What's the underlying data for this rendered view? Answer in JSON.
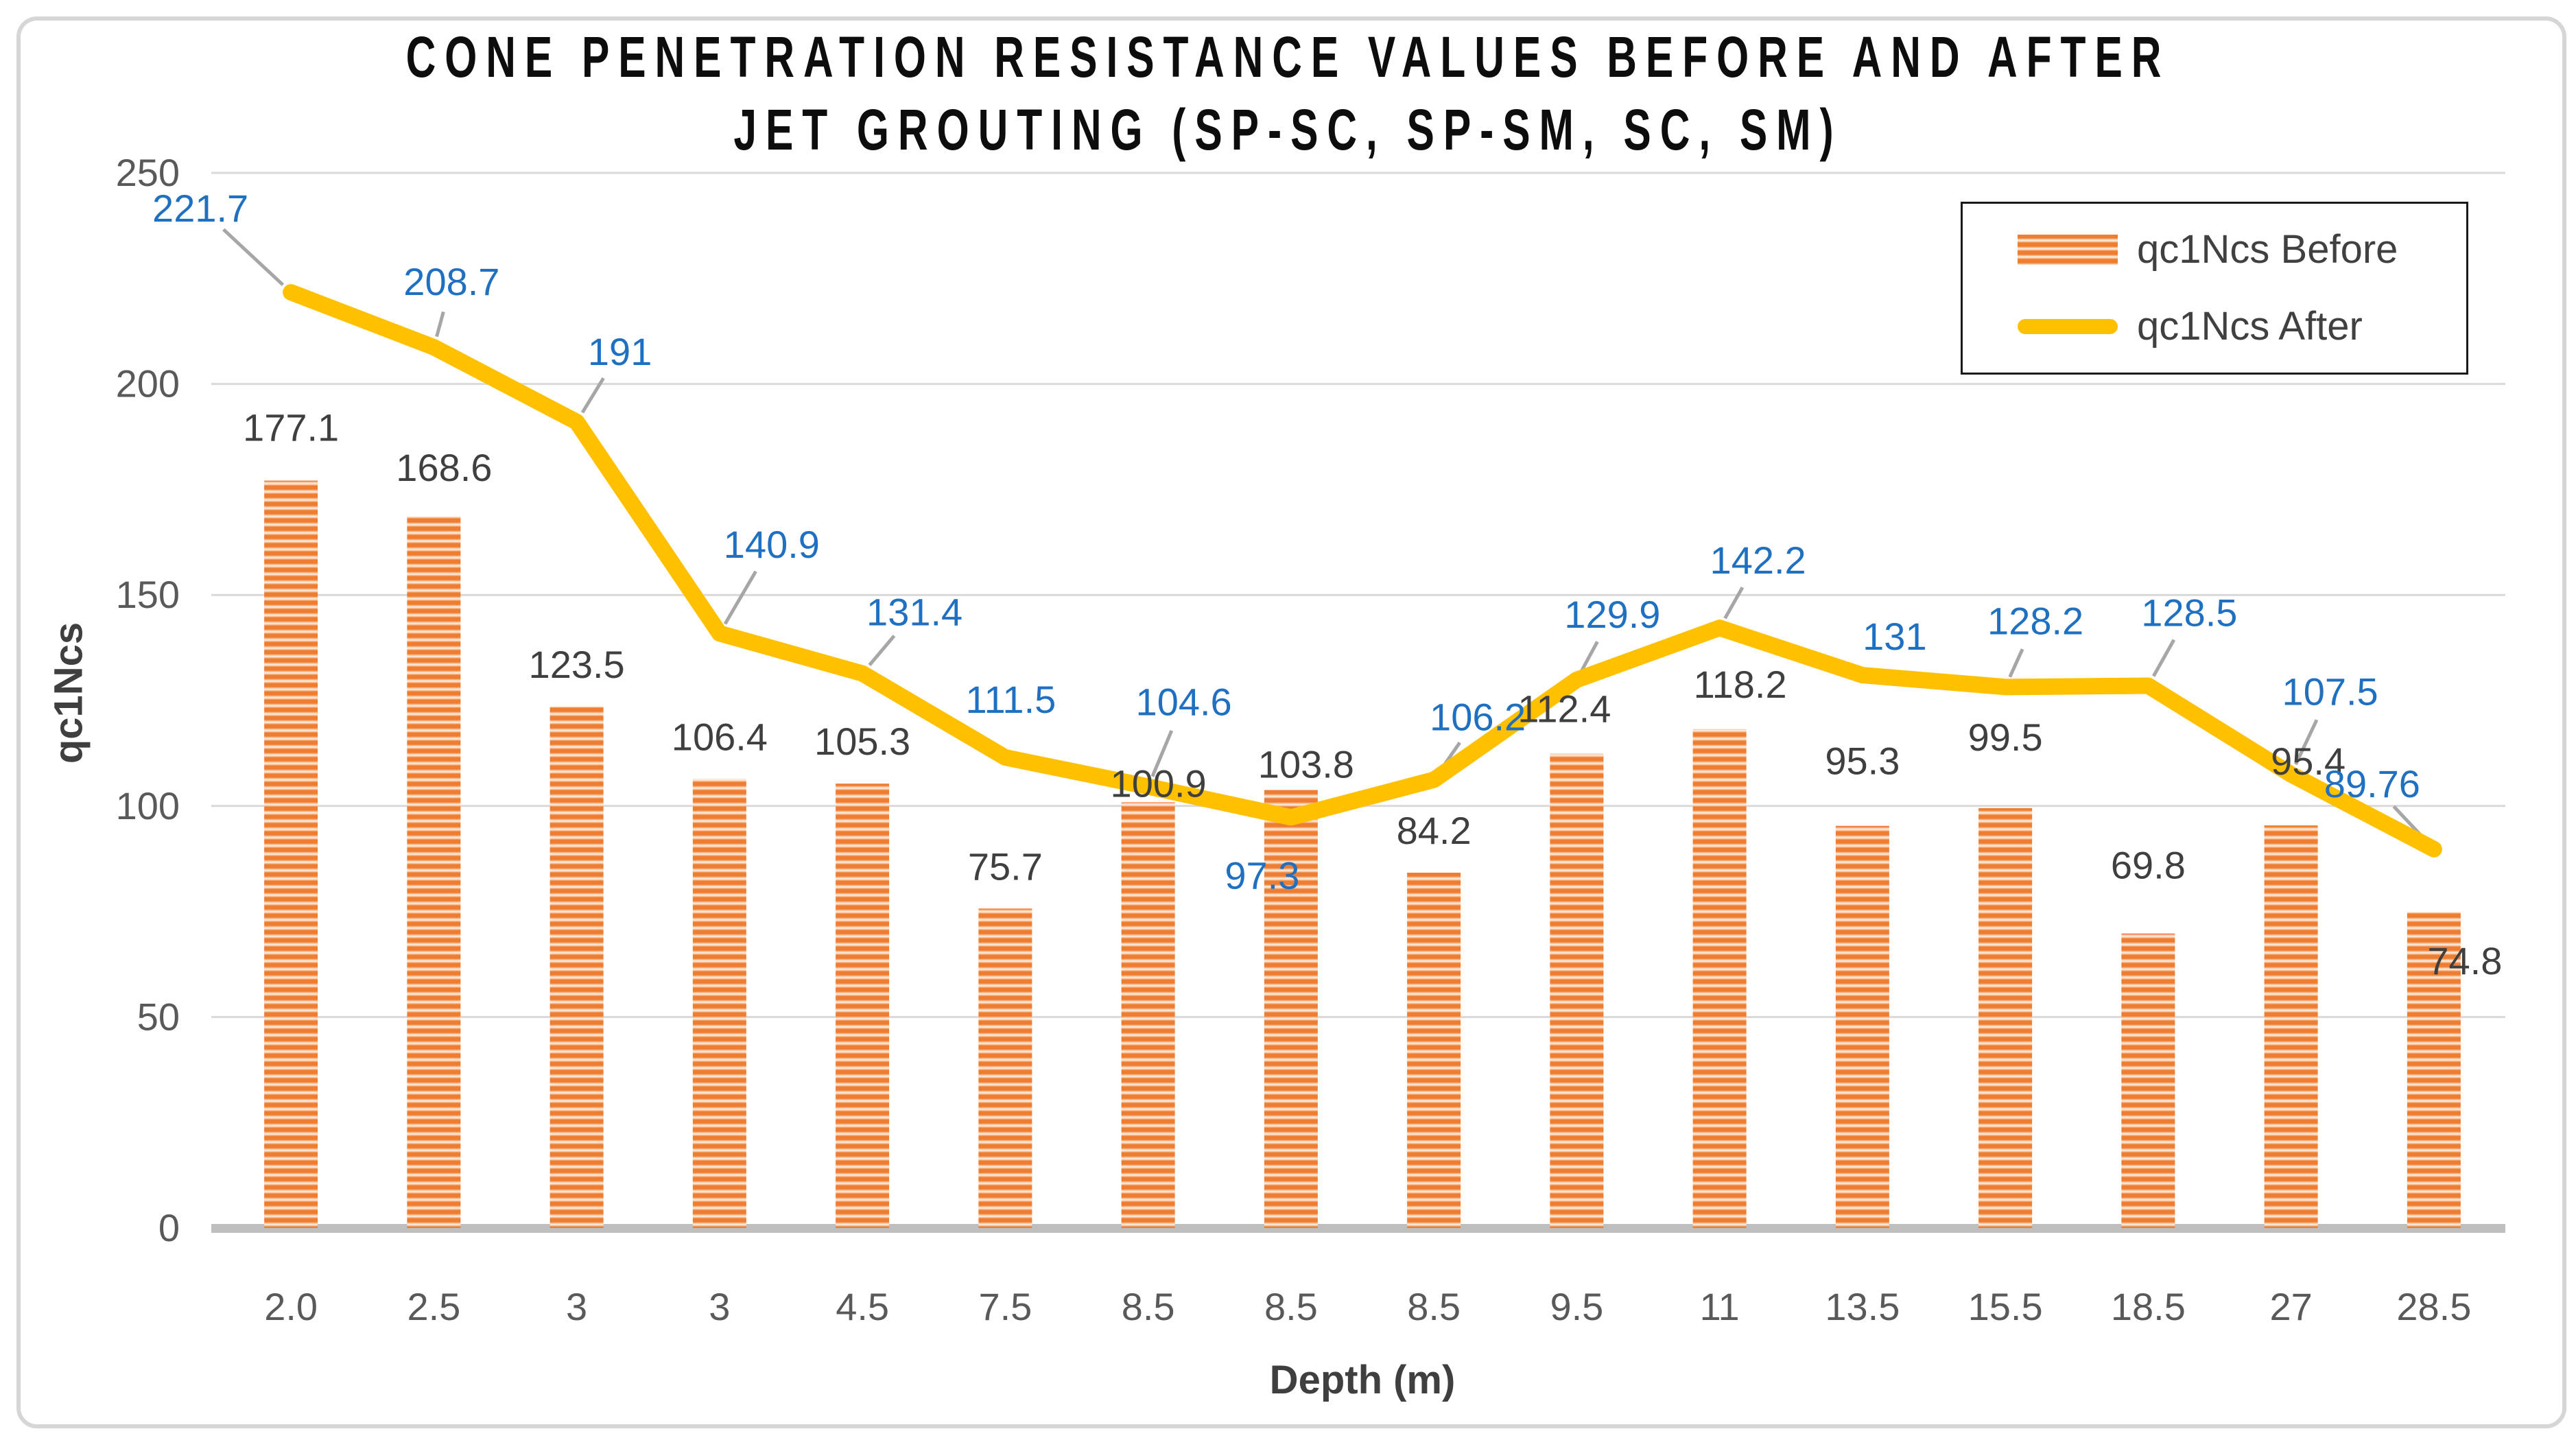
{
  "title": {
    "line1": "CONE PENETRATION RESISTANCE VALUES BEFORE AND AFTER",
    "line2": "JET GROUTING (SP-SC, SP-SM, SC, SM)"
  },
  "y_axis": {
    "title": "qc1Ncs",
    "ticks": [
      "0",
      "50",
      "100",
      "150",
      "200",
      "250"
    ]
  },
  "x_axis": {
    "title": "Depth (m)"
  },
  "legend": {
    "items": [
      {
        "label": "qc1Ncs Before",
        "swatch": "bar"
      },
      {
        "label": "qc1Ncs After",
        "swatch": "line"
      }
    ]
  },
  "colors": {
    "bar_stripe": "#ED7D31",
    "bar_stripe_light": "#FDEBDD",
    "line": "#FFC000",
    "line_label": "#1F70C1",
    "bar_label": "#3F3F3F",
    "tick": "#595959",
    "grid": "#D9D9D9",
    "axis_line": "#BFBFBF",
    "leader": "#A6A6A6"
  },
  "chart_data": {
    "type": "bar",
    "categories": [
      "2.0",
      "2.5",
      "3",
      "3",
      "4.5",
      "7.5",
      "8.5",
      "8.5",
      "8.5",
      "9.5",
      "11",
      "13.5",
      "15.5",
      "18.5",
      "27",
      "28.5"
    ],
    "series": [
      {
        "name": "qc1Ncs Before",
        "type": "bar",
        "values": [
          177.1,
          168.6,
          123.5,
          106.4,
          105.3,
          75.7,
          100.9,
          103.8,
          84.2,
          112.4,
          118.2,
          95.3,
          99.5,
          69.8,
          95.4,
          74.8
        ]
      },
      {
        "name": "qc1Ncs After",
        "type": "line",
        "values": [
          221.7,
          208.7,
          191,
          140.9,
          131.4,
          111.5,
          104.6,
          97.3,
          106.2,
          129.9,
          142.2,
          131,
          128.2,
          128.5,
          107.5,
          89.76
        ]
      }
    ],
    "title": "CONE PENETRATION RESISTANCE VALUES BEFORE AND AFTER JET GROUTING (SP-SC, SP-SM, SC, SM)",
    "xlabel": "Depth (m)",
    "ylabel": "qc1Ncs",
    "ylim": [
      0,
      250
    ],
    "ytick_step": 50,
    "grid": true,
    "legend_position": "top-right",
    "data_labels": true
  }
}
